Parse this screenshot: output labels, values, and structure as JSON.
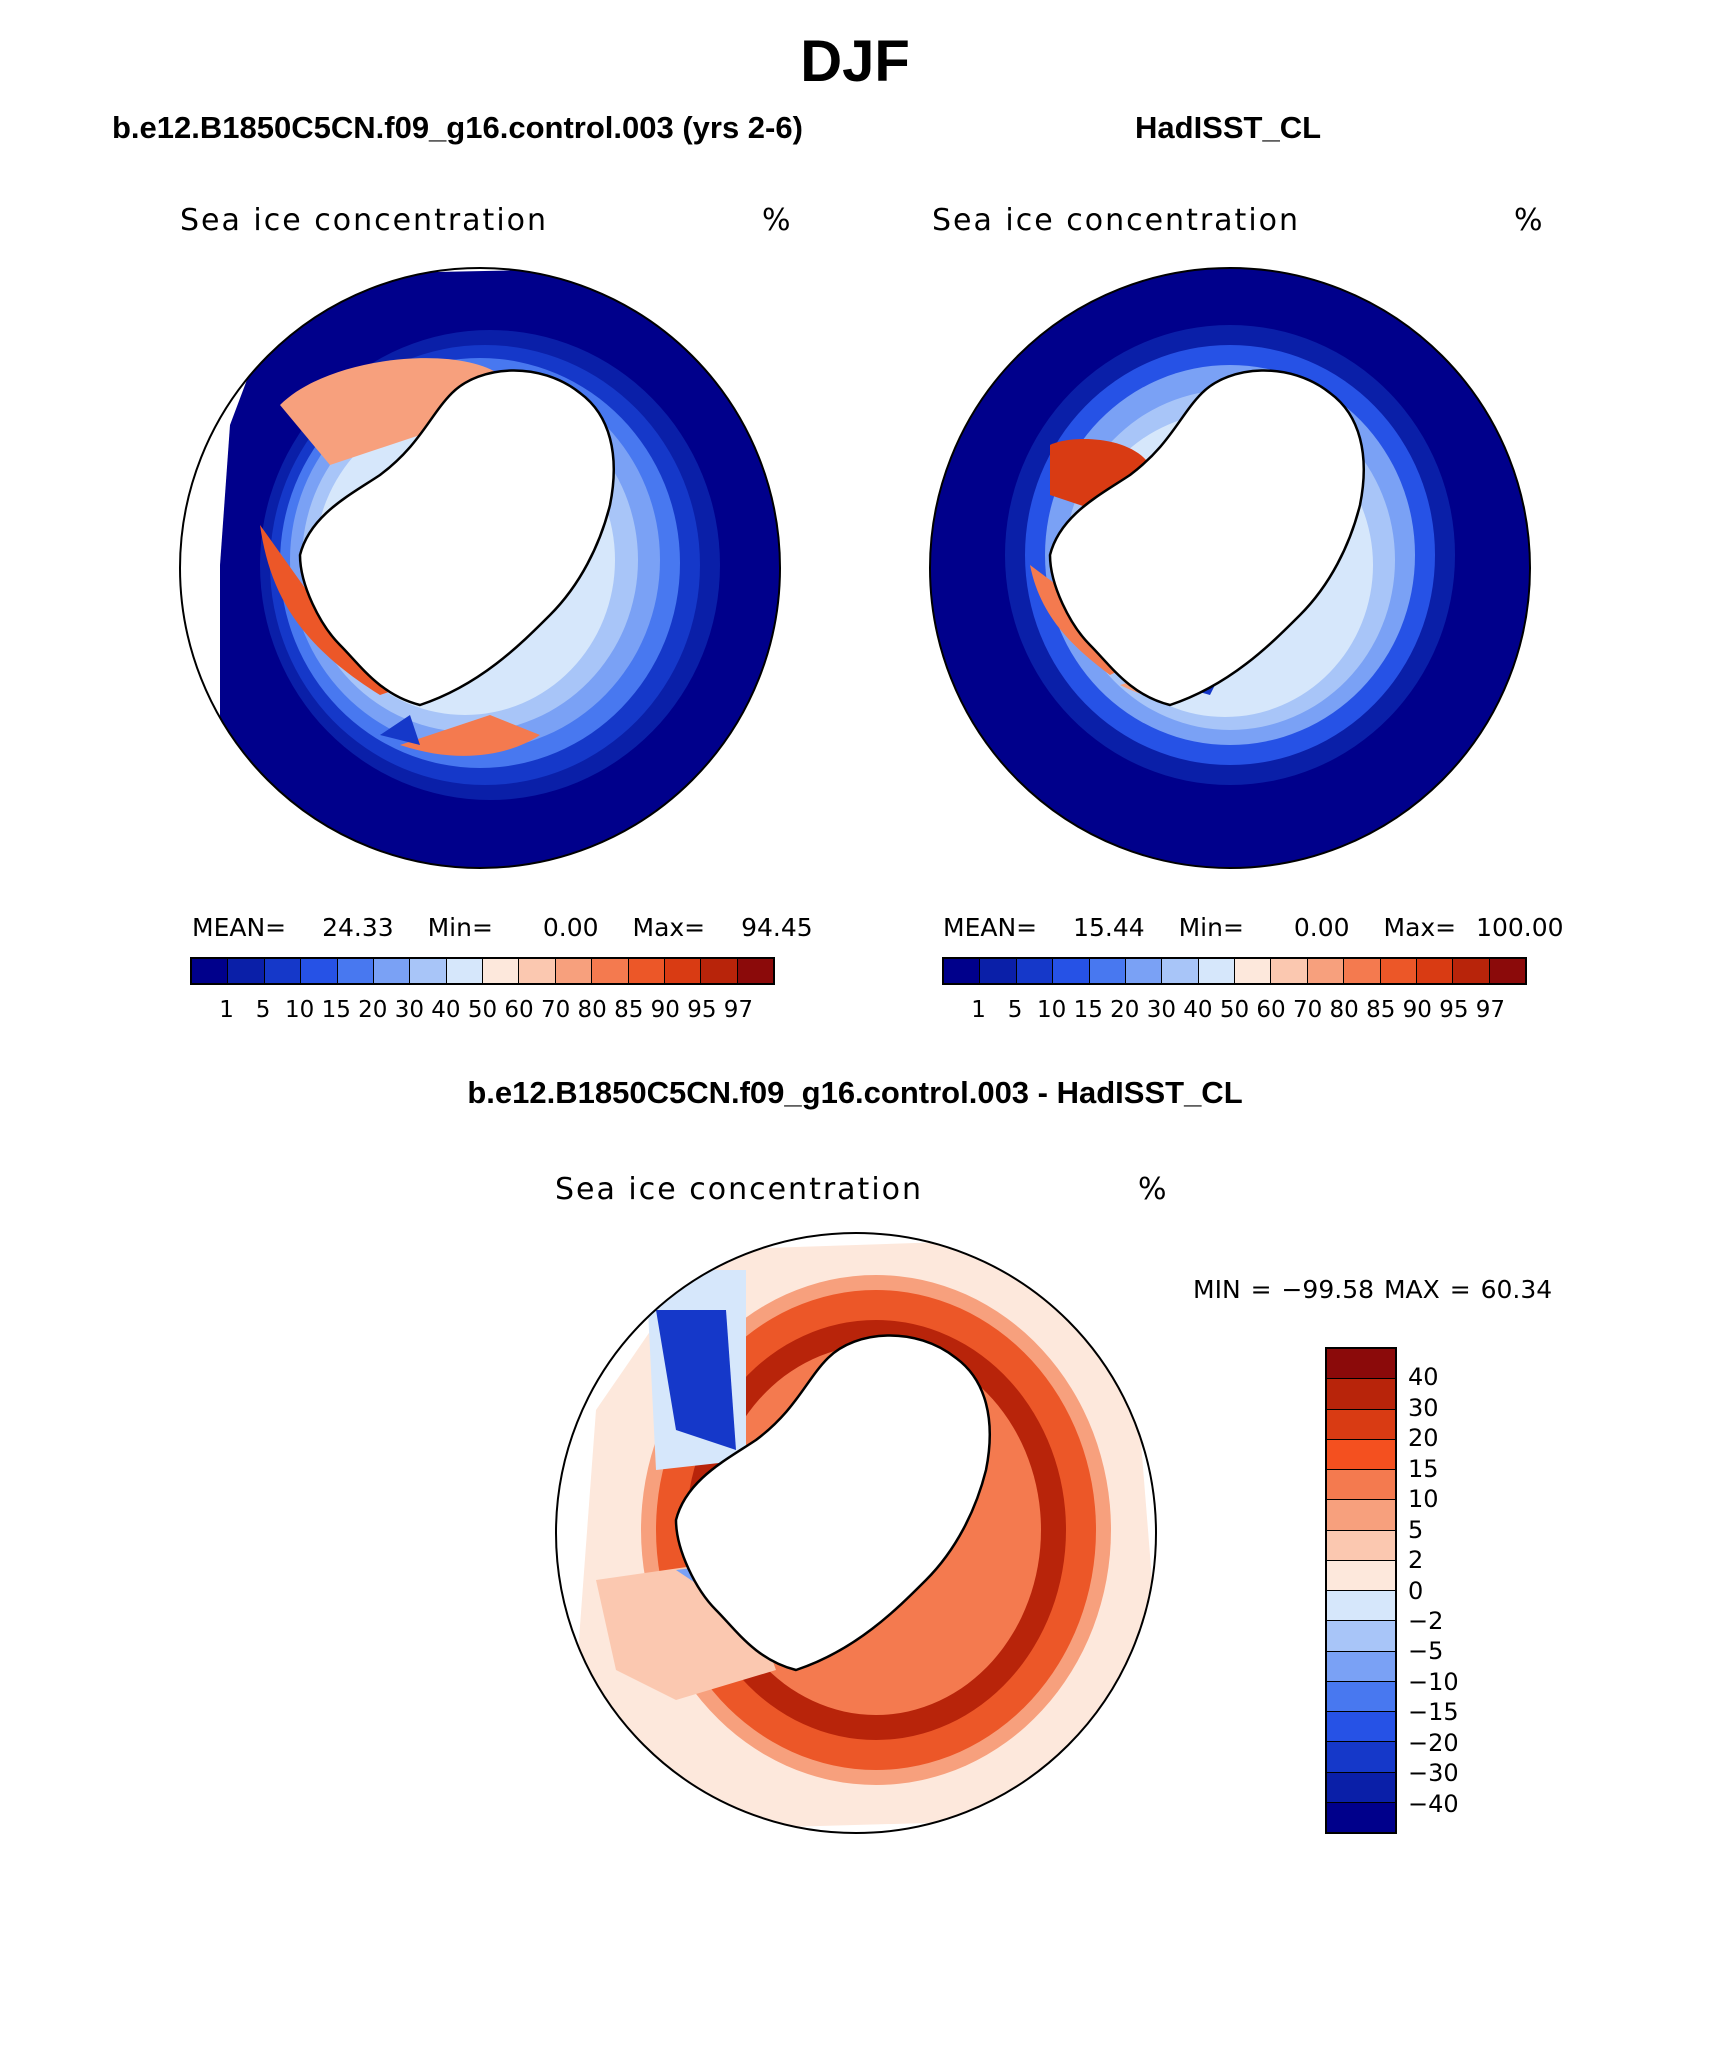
{
  "figure": {
    "title": "DJF",
    "variable": "Sea ice concentration",
    "units": "%"
  },
  "panels": {
    "model": {
      "title": "b.e12.B1850C5CN.f09_g16.control.003 (yrs 2-6)",
      "mean": "24.33",
      "min": "0.00",
      "max": "94.45",
      "mean_label": "MEAN=",
      "min_label": "Min=",
      "max_label": "Max="
    },
    "obs": {
      "title": "HadISST_CL",
      "mean": "15.44",
      "min": "0.00",
      "max": "100.00",
      "mean_label": "MEAN=",
      "min_label": "Min=",
      "max_label": "Max="
    },
    "diff": {
      "title": "b.e12.B1850C5CN.f09_g16.control.003 - HadISST_CL",
      "minmax_text": "MIN = −99.58 MAX =   60.34"
    }
  },
  "colorbar_main": {
    "levels": [
      "1",
      "5",
      "10",
      "15",
      "20",
      "30",
      "40",
      "50",
      "60",
      "70",
      "80",
      "85",
      "90",
      "95",
      "97"
    ],
    "colors": [
      "#00008b",
      "#0a1fa8",
      "#1538c9",
      "#2652e6",
      "#4878f0",
      "#7aa1f5",
      "#a8c5f8",
      "#d6e7fb",
      "#fde8dc",
      "#fbc8b0",
      "#f7a07d",
      "#f47a4f",
      "#ec5728",
      "#d93b13",
      "#b8240a",
      "#8b0a0a"
    ]
  },
  "colorbar_diff": {
    "levels": [
      "40",
      "30",
      "20",
      "15",
      "10",
      "5",
      "2",
      "0",
      "−2",
      "−5",
      "−10",
      "−15",
      "−20",
      "−30",
      "−40"
    ],
    "colors": [
      "#8b0a0a",
      "#b8240a",
      "#d93b13",
      "#f4501f",
      "#f47a4f",
      "#f7a07d",
      "#fbc8b0",
      "#fde8dc",
      "#d6e7fb",
      "#a8c5f8",
      "#7aa1f5",
      "#4878f0",
      "#2652e6",
      "#1538c9",
      "#0a1fa8",
      "#00008b"
    ]
  }
}
